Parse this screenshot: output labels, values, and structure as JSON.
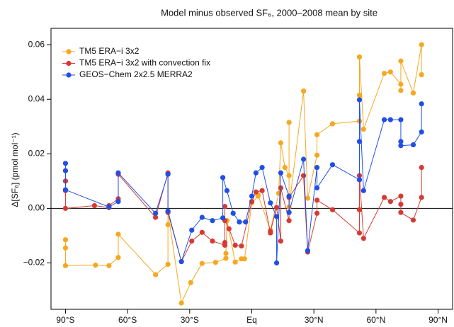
{
  "chart_data": {
    "type": "line",
    "title": "Model minus observed SF₆, 2000–2008 mean by site",
    "y_label": "Δ[SF₆] (pmol mol⁻¹)",
    "xlim": [
      -97,
      97
    ],
    "ylim": [
      -0.037,
      0.066
    ],
    "xticks": [
      {
        "value": -90,
        "label": "90°S"
      },
      {
        "value": -60,
        "label": "60°S"
      },
      {
        "value": -30,
        "label": "30°S"
      },
      {
        "value": 0,
        "label": "Eq"
      },
      {
        "value": 30,
        "label": "30°N"
      },
      {
        "value": 60,
        "label": "60°N"
      },
      {
        "value": 90,
        "label": "90°N"
      }
    ],
    "yticks": [
      {
        "value": -0.02,
        "label": "−0.02"
      },
      {
        "value": 0,
        "label": "0.00"
      },
      0.02,
      0.04,
      0.06
    ],
    "zero_line": true,
    "legend": "top-left",
    "series": [
      {
        "name": "TM5 ERA−i 3x2",
        "color": "#f6a81f",
        "x": [
          -90,
          -90,
          -90,
          -75.5,
          -69,
          -64.5,
          -64.5,
          -46.5,
          -40.5,
          -40.5,
          -40.5,
          -34,
          -29.5,
          -24,
          -17.5,
          -12.5,
          -12.5,
          -12,
          -8,
          -5,
          -3.5,
          0,
          3,
          3,
          9,
          13,
          14,
          16,
          18,
          18,
          18,
          25,
          27,
          31.5,
          31.5,
          39,
          52,
          52,
          52,
          54,
          64,
          67,
          72,
          72,
          72,
          78,
          82,
          82
        ],
        "values": [
          -0.0115,
          -0.0145,
          -0.021,
          -0.0208,
          -0.021,
          -0.018,
          -0.0095,
          -0.0243,
          -0.0205,
          -0.006,
          -0.0013,
          -0.0347,
          -0.0272,
          -0.0202,
          -0.0198,
          -0.0183,
          -0.0165,
          -0.0045,
          -0.0197,
          -0.0185,
          -0.0185,
          0.002,
          0.0045,
          0.005,
          -0.008,
          0.0055,
          0.024,
          0.015,
          0.012,
          0.0315,
          0.0005,
          0.043,
          0.0037,
          0.0195,
          0.027,
          0.031,
          0.032,
          0.0415,
          0.0555,
          0.029,
          0.0495,
          0.05,
          0.0455,
          0.0432,
          0.054,
          0.0423,
          0.06,
          0.049
        ]
      },
      {
        "name": "TM5 ERA−i 3x2 with convection fix",
        "color": "#d63a33",
        "x": [
          -90,
          -90,
          -90,
          -76,
          -69,
          -69,
          -64.5,
          -64.5,
          -46.5,
          -40.5,
          -40.5,
          -34,
          -29,
          -24,
          -19,
          -13,
          -13,
          -13,
          -13,
          -11,
          -8,
          -5,
          0,
          2,
          5,
          9,
          9,
          12,
          14,
          14,
          18,
          18,
          25,
          27,
          31.5,
          31.5,
          39,
          52,
          52,
          52,
          54,
          64,
          67,
          72,
          72,
          72,
          78,
          82,
          82
        ],
        "values": [
          0.01,
          0.0065,
          0.0,
          0.001,
          0.0003,
          0.001,
          0.0035,
          0.0125,
          -0.0033,
          0.013,
          -0.0015,
          -0.0195,
          -0.012,
          -0.0088,
          -0.012,
          -0.0135,
          -0.0125,
          0.0007,
          -0.0045,
          -0.0075,
          -0.0135,
          -0.0138,
          0.0025,
          0.006,
          0.0065,
          -0.009,
          -0.0085,
          0.0003,
          -0.012,
          0.0075,
          -0.0045,
          0.004,
          0.012,
          -0.016,
          -0.0018,
          0.003,
          -0.0005,
          -0.009,
          -0.0005,
          0.012,
          -0.011,
          0.004,
          0.0025,
          0.0045,
          0.0015,
          -0.0015,
          -0.0043,
          0.004,
          0.015
        ]
      },
      {
        "name": "GEOS−Chem 2x2.5 MERRA2",
        "color": "#1f4fe6",
        "x": [
          -90,
          -90,
          -90,
          -69,
          -64.5,
          -64.5,
          -46.5,
          -40.5,
          -40.5,
          -34,
          -29,
          -24,
          -19,
          -14,
          -14,
          -12,
          -9,
          -6,
          -3,
          0,
          2,
          5,
          9,
          12,
          12,
          14,
          18,
          18,
          25,
          27,
          31.5,
          31.5,
          39,
          52,
          52,
          52,
          54,
          64,
          67,
          72,
          72,
          72,
          78,
          82,
          82
        ],
        "values": [
          0.0165,
          0.0138,
          0.0068,
          0.0005,
          0.0025,
          0.013,
          -0.0018,
          0.0125,
          -0.001,
          -0.0195,
          -0.008,
          -0.0033,
          -0.0045,
          -0.0035,
          0.0113,
          0.0065,
          -0.0018,
          -0.005,
          -0.005,
          0.0045,
          0.013,
          0.015,
          0.002,
          -0.003,
          -0.02,
          0.013,
          0.0045,
          -0.0015,
          0.018,
          -0.0155,
          0.015,
          0.0075,
          0.016,
          0.0105,
          0.0245,
          0.0398,
          0.0065,
          0.0325,
          0.0325,
          0.0325,
          0.0245,
          0.023,
          0.0233,
          0.028,
          0.0383
        ]
      }
    ]
  }
}
